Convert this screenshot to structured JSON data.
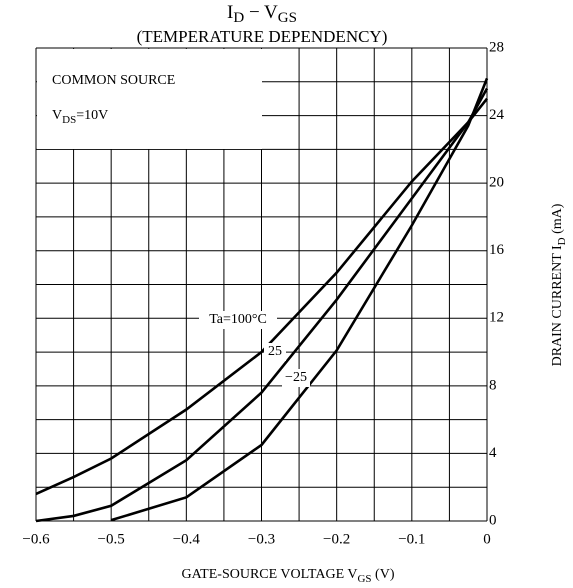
{
  "chart_data": {
    "type": "line",
    "title": [
      "I",
      "D",
      " − V",
      "GS"
    ],
    "subtitle": "(TEMPERATURE DEPENDENCY)",
    "annotations": [
      "COMMON SOURCE",
      [
        "V",
        "DS",
        "=10V"
      ]
    ],
    "x_label": [
      "GATE-SOURCE VOLTAGE  V",
      "GS",
      "  (V)"
    ],
    "y_label": [
      "DRAIN CURRENT  I",
      "D",
      "  (mA)"
    ],
    "x": [
      -0.6,
      -0.55,
      -0.5,
      -0.4,
      -0.3,
      -0.2,
      -0.1,
      -0.025,
      0
    ],
    "series": [
      {
        "name": "Ta=100°C",
        "color": "#000000",
        "values": [
          1.6,
          2.6,
          3.7,
          6.6,
          10.0,
          14.7,
          20.1,
          23.6,
          25.0
        ]
      },
      {
        "name": "25",
        "color": "#000000",
        "values": [
          0,
          0.3,
          0.9,
          3.6,
          7.6,
          13.1,
          19.1,
          23.6,
          25.6
        ]
      },
      {
        "name": "−25",
        "color": "#000000",
        "values": [
          null,
          null,
          0.05,
          1.4,
          4.5,
          10.1,
          17.5,
          23.4,
          26.2
        ]
      }
    ],
    "xlim": [
      -0.6,
      0
    ],
    "ylim": [
      0,
      28
    ],
    "xticks": [
      {
        "value": -0.6,
        "label": "−0.6"
      },
      {
        "value": -0.5,
        "label": "−0.5"
      },
      {
        "value": -0.4,
        "label": "−0.4"
      },
      {
        "value": -0.3,
        "label": "−0.3"
      },
      {
        "value": -0.2,
        "label": "−0.2"
      },
      {
        "value": -0.1,
        "label": "−0.1"
      },
      0
    ],
    "yticks": [
      0,
      4,
      8,
      12,
      16,
      20,
      24,
      28
    ],
    "minor_xticks": [
      -0.55,
      -0.45,
      -0.35,
      -0.25,
      -0.15,
      -0.05
    ],
    "minor_yticks": [
      2,
      6,
      10,
      14,
      18,
      22,
      26
    ],
    "grid": true
  }
}
